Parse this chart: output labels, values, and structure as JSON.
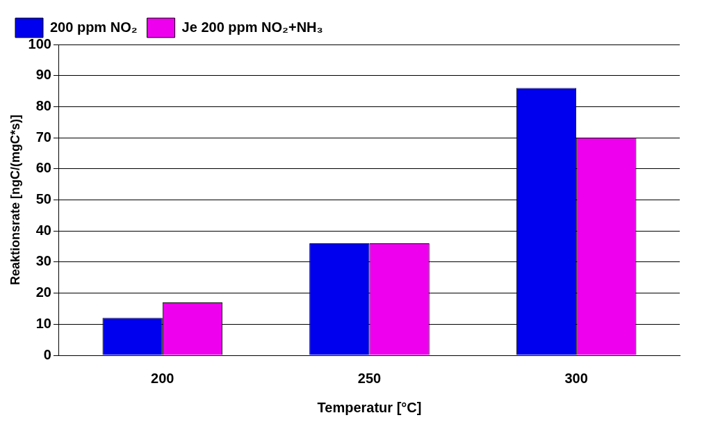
{
  "chart_data": {
    "type": "bar",
    "xlabel": "Temperatur [°C]",
    "ylabel": "Reaktionsrate [ngC/(mgC*s)]",
    "categories": [
      "200",
      "250",
      "300"
    ],
    "series": [
      {
        "name": "200 ppm NO₂",
        "color": "#0000ee",
        "values": [
          12,
          36,
          86
        ]
      },
      {
        "name": "Je 200 ppm NO₂+NH₃",
        "color": "#ee00ee",
        "values": [
          17,
          36,
          70
        ]
      }
    ],
    "ylim": [
      0,
      100
    ],
    "yticks": [
      0,
      10,
      20,
      30,
      40,
      50,
      60,
      70,
      80,
      90,
      100
    ],
    "grid": "y",
    "legend": "top"
  }
}
